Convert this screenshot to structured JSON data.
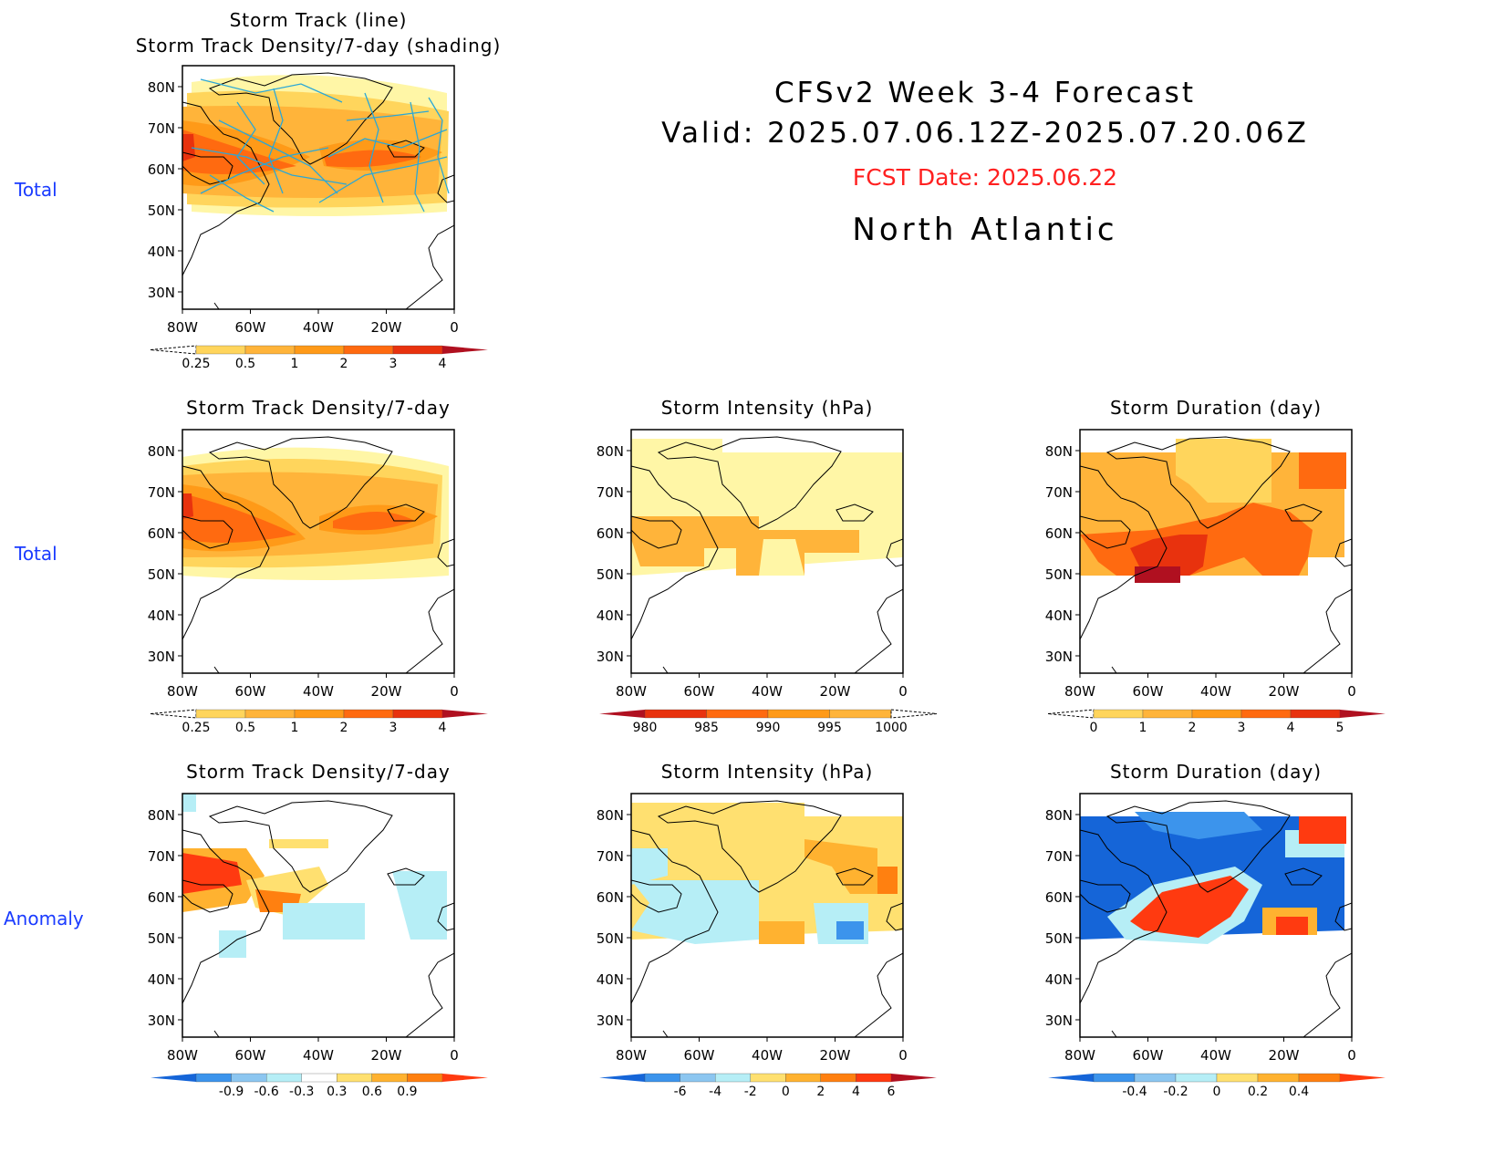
{
  "header": {
    "title": "CFSv2 Week 3-4 Forecast",
    "valid": "Valid: 2025.07.06.12Z-2025.07.20.06Z",
    "fcst_date": "FCST Date: 2025.06.22",
    "region": "North Atlantic"
  },
  "row_labels": [
    "Total",
    "Total",
    "Anomaly"
  ],
  "map_axes": {
    "lat_ticks": [
      "80N",
      "70N",
      "60N",
      "50N",
      "40N",
      "30N"
    ],
    "lon_ticks": [
      "80W",
      "60W",
      "40W",
      "20W",
      "0"
    ]
  },
  "colors": {
    "row_label": "#1a3bff",
    "fcst_date": "#ff2020",
    "track_line": "#2aa7d6"
  },
  "panels": [
    {
      "id": "track-total",
      "title_lines": [
        "Storm Track (line)",
        "Storm Track Density/7-day (shading)"
      ],
      "colorbar": {
        "labels": [
          "0.25",
          "0.5",
          "1",
          "2",
          "3",
          "4"
        ],
        "colors": [
          "#fff6a6",
          "#ffd55c",
          "#ffb43a",
          "#ff9a18",
          "#ff6a10",
          "#e8320e",
          "#b01020"
        ],
        "dashed_low": true
      }
    },
    {
      "id": "density-total",
      "title_lines": [
        "Storm Track Density/7-day"
      ],
      "colorbar": {
        "labels": [
          "0.25",
          "0.5",
          "1",
          "2",
          "3",
          "4"
        ],
        "colors": [
          "#fff6a6",
          "#ffd55c",
          "#ffb43a",
          "#ff9a18",
          "#ff6a10",
          "#e8320e",
          "#b01020"
        ],
        "dashed_low": true
      }
    },
    {
      "id": "intensity-total",
      "title_lines": [
        "Storm Intensity (hPa)"
      ],
      "colorbar": {
        "labels": [
          "980",
          "985",
          "990",
          "995",
          "1000"
        ],
        "colors": [
          "#b01020",
          "#e8320e",
          "#ff6a10",
          "#ff9a18",
          "#ffb43a",
          "#fff6a6"
        ],
        "dashed_high": true
      }
    },
    {
      "id": "duration-total",
      "title_lines": [
        "Storm Duration (day)"
      ],
      "colorbar": {
        "labels": [
          "0",
          "1",
          "2",
          "3",
          "4",
          "5"
        ],
        "colors": [
          "#fff6a6",
          "#ffd55c",
          "#ffb43a",
          "#ff9a18",
          "#ff6a10",
          "#e8320e",
          "#b01020"
        ],
        "dashed_low": true
      }
    },
    {
      "id": "density-anom",
      "title_lines": [
        "Storm Track Density/7-day"
      ],
      "colorbar": {
        "labels": [
          "-0.9",
          "-0.6",
          "-0.3",
          "0.3",
          "0.6",
          "0.9"
        ],
        "colors": [
          "#1565d8",
          "#3c94ec",
          "#8cc6f0",
          "#b6eef6",
          "#ffffff",
          "#ffe070",
          "#ffb230",
          "#ff8010",
          "#ff3a10"
        ]
      }
    },
    {
      "id": "intensity-anom",
      "title_lines": [
        "Storm Intensity (hPa)"
      ],
      "colorbar": {
        "labels": [
          "-6",
          "-4",
          "-2",
          "0",
          "2",
          "4",
          "6"
        ],
        "colors": [
          "#1565d8",
          "#3c94ec",
          "#8cc6f0",
          "#b6eef6",
          "#ffe070",
          "#ffb230",
          "#ff8010",
          "#ff3a10",
          "#b01020"
        ]
      }
    },
    {
      "id": "duration-anom",
      "title_lines": [
        "Storm Duration (day)"
      ],
      "colorbar": {
        "labels": [
          "-0.4",
          "-0.2",
          "0",
          "0.2",
          "0.4"
        ],
        "colors": [
          "#1565d8",
          "#3c94ec",
          "#8cc6f0",
          "#b6eef6",
          "#ffe070",
          "#ffb230",
          "#ff8010",
          "#ff3a10"
        ]
      }
    }
  ]
}
